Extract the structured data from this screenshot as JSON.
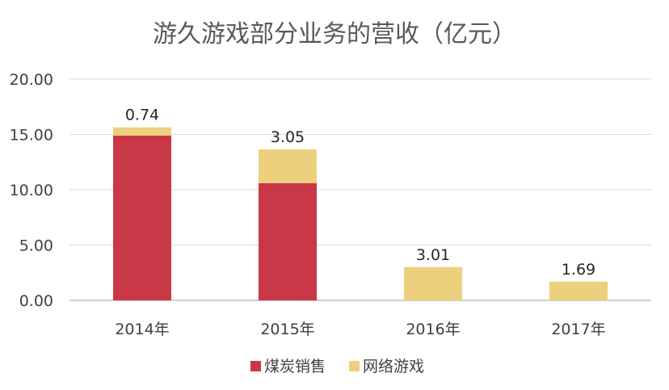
{
  "chart_data": {
    "type": "bar",
    "stacked": true,
    "title": "游久游戏部分业务的营收（亿元）",
    "xlabel": "",
    "ylabel": "",
    "ylim": [
      0,
      20
    ],
    "yticks": [
      "0.00",
      "5.00",
      "10.00",
      "15.00",
      "20.00"
    ],
    "grid": true,
    "legend_position": "bottom",
    "categories": [
      "2014年",
      "2015年",
      "2016年",
      "2017年"
    ],
    "series": [
      {
        "name": "煤炭销售",
        "color": "#C93846",
        "values": [
          14.9,
          10.6,
          0,
          0
        ]
      },
      {
        "name": "网络游戏",
        "color": "#EDD07D",
        "values": [
          0.74,
          3.05,
          3.01,
          1.69
        ]
      }
    ],
    "data_labels": [
      "0.74",
      "3.05",
      "3.01",
      "1.69"
    ]
  }
}
